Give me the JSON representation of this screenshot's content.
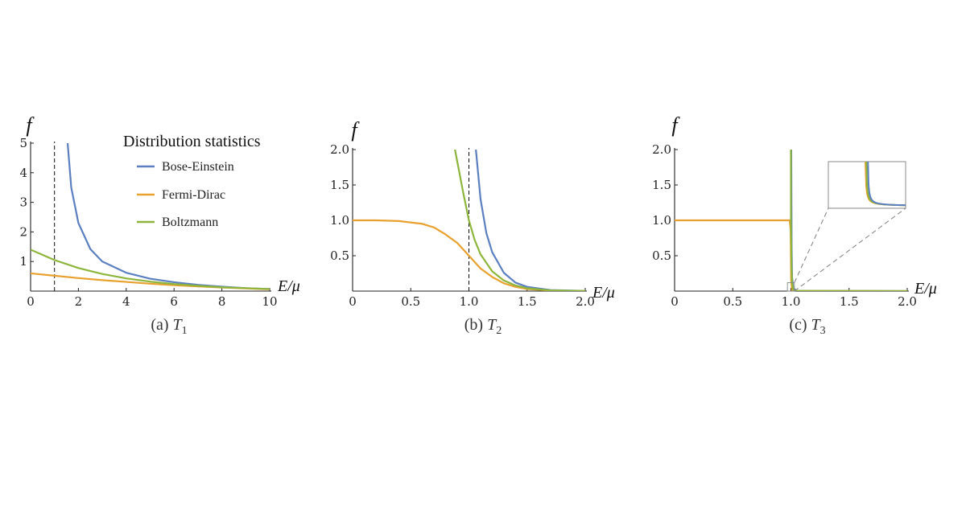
{
  "legend": {
    "title": "Distribution statistics",
    "items": [
      "Bose-Einstein",
      "Fermi-Dirac",
      "Boltzmann"
    ]
  },
  "colors": {
    "bose_einstein": "#5b7fc0",
    "fermi_dirac": "#e8a12e",
    "boltzmann": "#8db53c",
    "axis": "#222222",
    "reference_line": "#111111",
    "inset_connector": "#888888"
  },
  "chart_data": [
    {
      "type": "line",
      "caption_prefix": "(a) ",
      "caption_symbol": "T",
      "caption_subscript": "1",
      "ylabel": "f",
      "xlabel": "E/μ",
      "xlim": [
        0,
        10
      ],
      "ylim": [
        0,
        5
      ],
      "xticks": [
        "0",
        "2",
        "4",
        "6",
        "8",
        "10"
      ],
      "yticks": [
        "1",
        "2",
        "3",
        "4",
        "5"
      ],
      "reference_x": 1.0,
      "legend_position": "top-right",
      "series": [
        {
          "name": "Bose-Einstein",
          "x": [
            1.55,
            1.7,
            2.0,
            2.5,
            3.0,
            4.0,
            5.0,
            6.0,
            7.0,
            8.0,
            9.0,
            10.0
          ],
          "y": [
            5.0,
            3.5,
            2.3,
            1.42,
            1.0,
            0.62,
            0.42,
            0.3,
            0.21,
            0.15,
            0.1,
            0.07
          ]
        },
        {
          "name": "Fermi-Dirac",
          "x": [
            0,
            1,
            2,
            3,
            4,
            5,
            6,
            7,
            8,
            9,
            10
          ],
          "y": [
            0.6,
            0.52,
            0.44,
            0.37,
            0.31,
            0.25,
            0.2,
            0.16,
            0.12,
            0.09,
            0.06
          ]
        },
        {
          "name": "Boltzmann",
          "x": [
            0,
            1,
            2,
            3,
            4,
            5,
            6,
            7,
            8,
            9,
            10
          ],
          "y": [
            1.4,
            1.05,
            0.78,
            0.58,
            0.43,
            0.32,
            0.24,
            0.18,
            0.13,
            0.1,
            0.07
          ]
        }
      ]
    },
    {
      "type": "line",
      "caption_prefix": "(b) ",
      "caption_symbol": "T",
      "caption_subscript": "2",
      "ylabel": "f",
      "xlabel": "E/μ",
      "xlim": [
        0,
        2.0
      ],
      "ylim": [
        0,
        2.0
      ],
      "xticks": [
        "0",
        "0.5",
        "1.0",
        "1.5",
        "2.0"
      ],
      "yticks": [
        "0.5",
        "1.0",
        "1.5",
        "2.0"
      ],
      "reference_x": 1.0,
      "series": [
        {
          "name": "Bose-Einstein",
          "x": [
            1.06,
            1.1,
            1.15,
            1.2,
            1.3,
            1.4,
            1.5,
            1.7,
            2.0
          ],
          "y": [
            2.0,
            1.3,
            0.82,
            0.55,
            0.26,
            0.12,
            0.06,
            0.015,
            0.003
          ]
        },
        {
          "name": "Fermi-Dirac",
          "x": [
            0,
            0.2,
            0.4,
            0.6,
            0.7,
            0.8,
            0.9,
            1.0,
            1.1,
            1.2,
            1.3,
            1.4,
            1.5,
            1.7,
            2.0
          ],
          "y": [
            1.0,
            1.0,
            0.99,
            0.95,
            0.9,
            0.8,
            0.68,
            0.5,
            0.32,
            0.2,
            0.11,
            0.06,
            0.03,
            0.008,
            0.001
          ]
        },
        {
          "name": "Boltzmann",
          "x": [
            0.88,
            0.95,
            1.0,
            1.05,
            1.1,
            1.2,
            1.3,
            1.4,
            1.5,
            1.7,
            2.0
          ],
          "y": [
            2.0,
            1.4,
            1.0,
            0.72,
            0.52,
            0.28,
            0.15,
            0.08,
            0.04,
            0.01,
            0.002
          ]
        }
      ]
    },
    {
      "type": "line",
      "caption_prefix": "(c) ",
      "caption_symbol": "T",
      "caption_subscript": "3",
      "ylabel": "f",
      "xlabel": "E/μ",
      "xlim": [
        0,
        2.0
      ],
      "ylim": [
        0,
        2.0
      ],
      "xticks": [
        "0",
        "0.5",
        "1.0",
        "1.5",
        "2.0"
      ],
      "yticks": [
        "0.5",
        "1.0",
        "1.5",
        "2.0"
      ],
      "inset": {
        "zoom_x": [
          0.97,
          1.03
        ],
        "zoom_y": [
          0,
          0.12
        ]
      },
      "series": [
        {
          "name": "Bose-Einstein",
          "x": [
            1.003,
            1.006,
            1.01,
            1.02,
            1.05,
            2.0
          ],
          "y": [
            2.0,
            0.6,
            0.2,
            0.04,
            0.005,
            0.0
          ]
        },
        {
          "name": "Fermi-Dirac",
          "x": [
            0,
            0.99,
            0.998,
            1.0,
            1.002,
            1.01,
            1.02,
            2.0
          ],
          "y": [
            1.0,
            1.0,
            0.85,
            0.5,
            0.15,
            0.02,
            0.004,
            0.0
          ]
        },
        {
          "name": "Boltzmann",
          "x": [
            1.0,
            1.0,
            1.005,
            1.01,
            1.02,
            1.05,
            2.0
          ],
          "y": [
            2.0,
            1.0,
            0.35,
            0.12,
            0.02,
            0.003,
            0.0
          ]
        }
      ]
    }
  ]
}
